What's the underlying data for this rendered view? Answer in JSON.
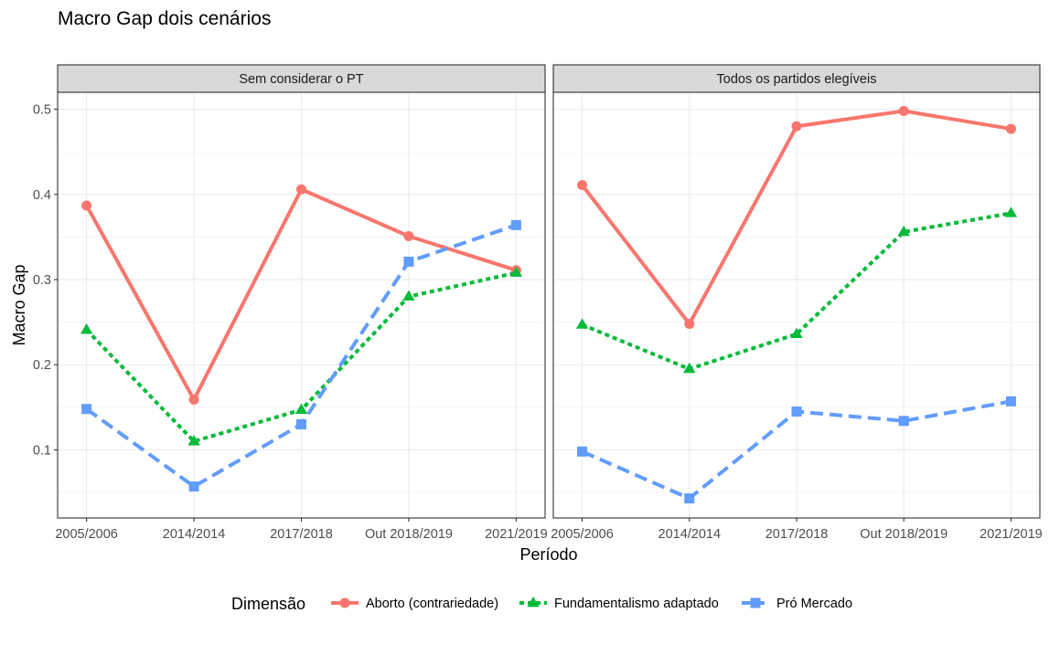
{
  "chart_data": {
    "type": "line",
    "title": "Macro Gap dois cenários",
    "xlabel": "Período",
    "ylabel": "Macro Gap",
    "categories": [
      "2005/2006",
      "2014/2014",
      "2017/2018",
      "Out 2018/2019",
      "2021/2019"
    ],
    "ylim": [
      0.02,
      0.52
    ],
    "yticks": [
      0.1,
      0.2,
      0.3,
      0.4,
      0.5
    ],
    "ytick_labels": [
      "0.1",
      "0.2",
      "0.3",
      "0.4",
      "0.5"
    ],
    "grid": true,
    "legend_title": "Dimensão",
    "legend_position": "bottom",
    "series_meta": [
      {
        "name": "Aborto (contrariedade)",
        "color": "#F8766D",
        "dash": "solid",
        "marker": "circle"
      },
      {
        "name": "Fundamentalismo adaptado",
        "color": "#00BA38",
        "dash": "dotted",
        "marker": "triangle"
      },
      {
        "name": "Pró Mercado",
        "color": "#619CFF",
        "dash": "dashed",
        "marker": "square"
      }
    ],
    "panels": [
      {
        "label": "Sem considerar o PT",
        "series": [
          {
            "name": "Aborto (contrariedade)",
            "values": [
              0.387,
              0.159,
              0.406,
              0.351,
              0.311
            ]
          },
          {
            "name": "Fundamentalismo adaptado",
            "values": [
              0.241,
              0.11,
              0.147,
              0.28,
              0.308
            ]
          },
          {
            "name": "Pró Mercado",
            "values": [
              0.148,
              0.057,
              0.13,
              0.321,
              0.364
            ]
          }
        ]
      },
      {
        "label": "Todos os partidos elegíveis",
        "series": [
          {
            "name": "Aborto (contrariedade)",
            "values": [
              0.411,
              0.248,
              0.48,
              0.498,
              0.477
            ]
          },
          {
            "name": "Fundamentalismo adaptado",
            "values": [
              0.247,
              0.195,
              0.236,
              0.356,
              0.378
            ]
          },
          {
            "name": "Pró Mercado",
            "values": [
              0.098,
              0.043,
              0.145,
              0.134,
              0.157
            ]
          }
        ]
      }
    ]
  }
}
